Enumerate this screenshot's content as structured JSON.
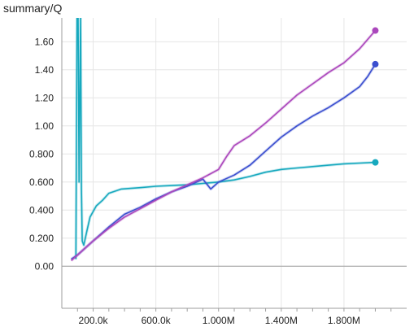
{
  "chart_data": {
    "type": "line",
    "title": "summary/Q",
    "xlabel": "",
    "ylabel": "",
    "xlim": [
      0,
      2200000
    ],
    "ylim": [
      -0.3,
      1.77
    ],
    "grid": true,
    "legend": "none",
    "zero_line": 0,
    "x_ticks": [
      {
        "value": 200000,
        "label": "200.0k"
      },
      {
        "value": 600000,
        "label": "600.0k"
      },
      {
        "value": 1000000,
        "label": "1.000M"
      },
      {
        "value": 1400000,
        "label": "1.400M"
      },
      {
        "value": 1800000,
        "label": "1.800M"
      }
    ],
    "y_ticks": [
      {
        "value": 0.0,
        "label": "0.00"
      },
      {
        "value": 0.2,
        "label": "0.200"
      },
      {
        "value": 0.4,
        "label": "0.400"
      },
      {
        "value": 0.6,
        "label": "0.600"
      },
      {
        "value": 0.8,
        "label": "0.800"
      },
      {
        "value": 1.0,
        "label": "1.00"
      },
      {
        "value": 1.2,
        "label": "1.20"
      },
      {
        "value": 1.4,
        "label": "1.40"
      },
      {
        "value": 1.6,
        "label": "1.60"
      }
    ],
    "series": [
      {
        "color": "#17a9be",
        "x": [
          90000,
          100000,
          110000,
          120000,
          125000,
          130000,
          140000,
          160000,
          180000,
          220000,
          260000,
          300000,
          380000,
          500000,
          600000,
          700000,
          800000,
          900000,
          1000000,
          1100000,
          1200000,
          1300000,
          1400000,
          1500000,
          1600000,
          1700000,
          1800000,
          1900000,
          2000000
        ],
        "y": [
          0.05,
          2.5,
          0.6,
          1.8,
          0.55,
          0.18,
          0.15,
          0.25,
          0.35,
          0.43,
          0.47,
          0.52,
          0.55,
          0.56,
          0.57,
          0.575,
          0.58,
          0.59,
          0.6,
          0.615,
          0.64,
          0.67,
          0.69,
          0.7,
          0.71,
          0.72,
          0.73,
          0.735,
          0.74
        ]
      },
      {
        "color": "#3b4fcf",
        "x": [
          60000,
          100000,
          150000,
          200000,
          300000,
          400000,
          500000,
          600000,
          700000,
          800000,
          900000,
          950000,
          1000000,
          1100000,
          1200000,
          1300000,
          1400000,
          1500000,
          1600000,
          1700000,
          1800000,
          1900000,
          1950000,
          2000000
        ],
        "y": [
          0.05,
          0.08,
          0.13,
          0.18,
          0.28,
          0.37,
          0.42,
          0.48,
          0.53,
          0.57,
          0.62,
          0.55,
          0.6,
          0.65,
          0.72,
          0.82,
          0.92,
          1.0,
          1.07,
          1.13,
          1.2,
          1.28,
          1.35,
          1.44
        ]
      },
      {
        "color": "#ab47bc",
        "x": [
          60000,
          100000,
          150000,
          200000,
          300000,
          400000,
          500000,
          600000,
          700000,
          800000,
          900000,
          1000000,
          1050000,
          1100000,
          1200000,
          1300000,
          1400000,
          1500000,
          1600000,
          1700000,
          1800000,
          1900000,
          2000000
        ],
        "y": [
          0.04,
          0.08,
          0.13,
          0.18,
          0.27,
          0.35,
          0.41,
          0.47,
          0.53,
          0.58,
          0.63,
          0.69,
          0.78,
          0.86,
          0.93,
          1.02,
          1.12,
          1.22,
          1.3,
          1.38,
          1.45,
          1.55,
          1.68
        ]
      }
    ]
  }
}
